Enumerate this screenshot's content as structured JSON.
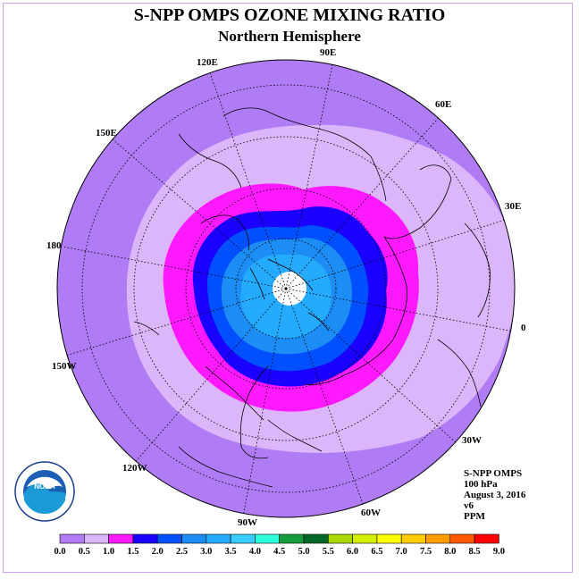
{
  "title": "S-NPP OMPS OZONE MIXING RATIO",
  "subtitle": "Northern Hemisphere",
  "longitude_labels": [
    "90E",
    "60E",
    "30E",
    "0",
    "30W",
    "60W",
    "90W",
    "120W",
    "150W",
    "180",
    "150E",
    "120E"
  ],
  "info": {
    "instrument": "S-NPP OMPS",
    "level": "100 hPa",
    "date": "August 3, 2016",
    "version": "v6",
    "units": "PPM"
  },
  "logo": {
    "text": "NOAA",
    "ring_text": "NATIONAL OCEANIC AND ATMOSPHERIC ADMINISTRATION · U.S. DEPARTMENT OF COMMERCE"
  },
  "colorbar": {
    "ticks": [
      "0.0",
      "0.5",
      "1.0",
      "1.5",
      "2.0",
      "2.5",
      "3.0",
      "3.5",
      "4.0",
      "4.5",
      "5.0",
      "5.5",
      "6.0",
      "6.5",
      "7.0",
      "7.5",
      "8.0",
      "8.5",
      "9.0"
    ],
    "colors": [
      "#b07cf5",
      "#dcb6fb",
      "#ff19ff",
      "#1a00ff",
      "#0050ff",
      "#1c8df5",
      "#24aaff",
      "#38ccff",
      "#2cffdc",
      "#169c3c",
      "#006826",
      "#a8d800",
      "#d4f000",
      "#ffff00",
      "#ffcc00",
      "#ff9c00",
      "#ff5a00",
      "#ff0000",
      "#7a4a30"
    ]
  },
  "ozone_bands": [
    {
      "range": "0.0-0.5",
      "color": "#b07cf5"
    },
    {
      "range": "0.5-1.0",
      "color": "#dcb6fb"
    },
    {
      "range": "1.0-1.5",
      "color": "#ff19ff"
    },
    {
      "range": "1.5-2.0",
      "color": "#1a00ff"
    },
    {
      "range": "2.0-2.5",
      "color": "#0050ff"
    },
    {
      "range": "2.5-3.0",
      "color": "#1c8df5"
    },
    {
      "range": "3.0-3.5",
      "color": "#24aaff"
    }
  ]
}
